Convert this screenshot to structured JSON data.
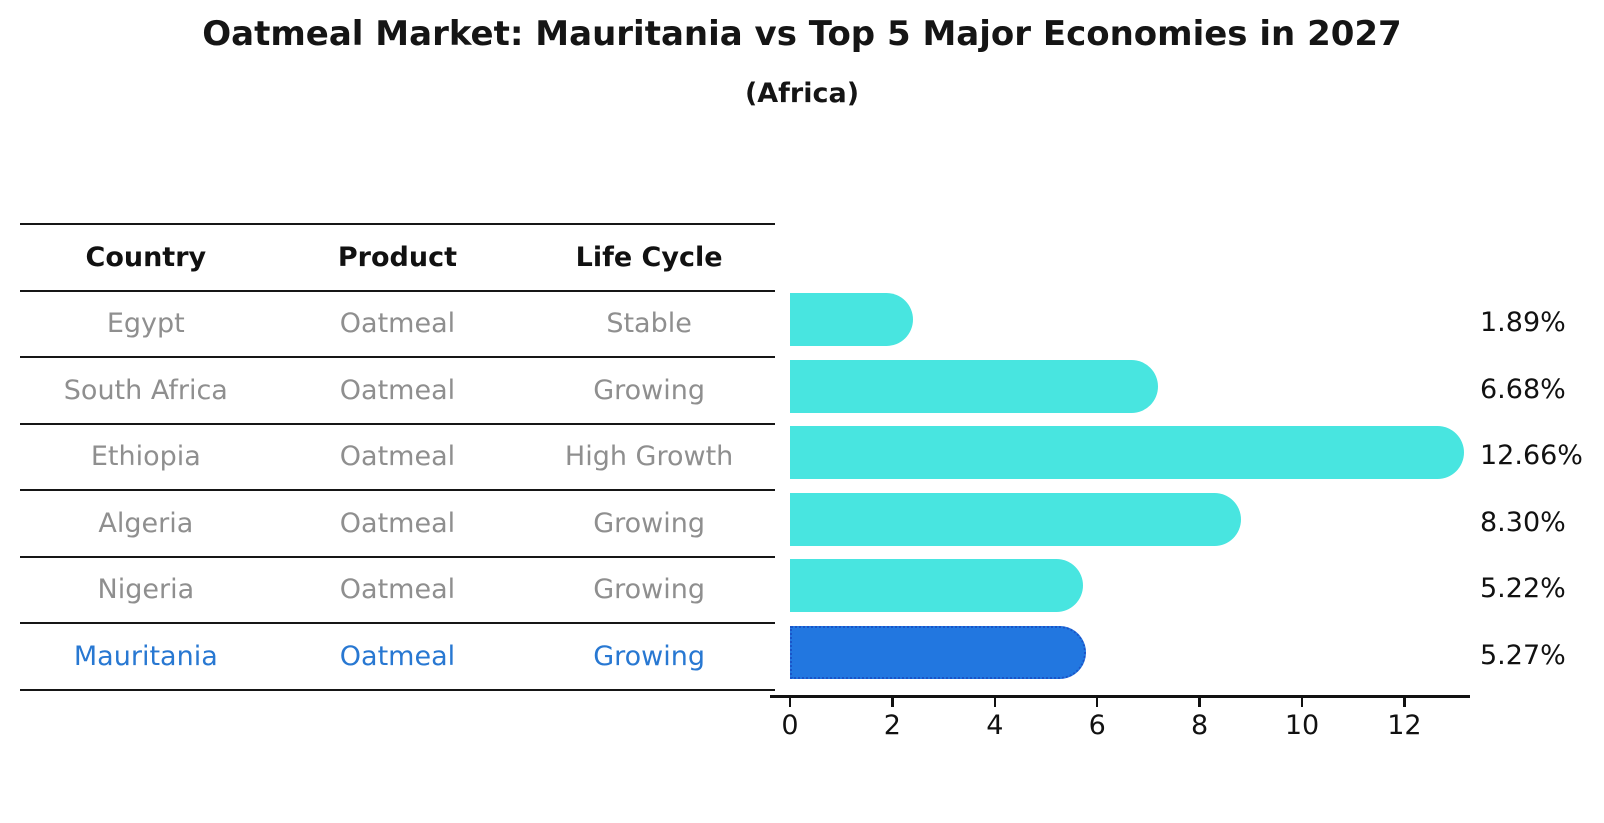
{
  "title": "Oatmeal Market: Mauritania vs Top 5 Major Economies in 2027",
  "subtitle": "(Africa)",
  "table": {
    "headers": [
      "Country",
      "Product",
      "Life Cycle"
    ],
    "rows": [
      {
        "country": "Egypt",
        "product": "Oatmeal",
        "life_cycle": "Stable",
        "highlighted": false
      },
      {
        "country": "South Africa",
        "product": "Oatmeal",
        "life_cycle": "Growing",
        "highlighted": false
      },
      {
        "country": "Ethiopia",
        "product": "Oatmeal",
        "life_cycle": "High Growth",
        "highlighted": false
      },
      {
        "country": "Algeria",
        "product": "Oatmeal",
        "life_cycle": "Growing",
        "highlighted": false
      },
      {
        "country": "Nigeria",
        "product": "Oatmeal",
        "life_cycle": "Growing",
        "highlighted": false
      },
      {
        "country": "Mauritania",
        "product": "Oatmeal",
        "life_cycle": "Growing",
        "highlighted": true
      }
    ]
  },
  "chart_data": {
    "type": "bar",
    "orientation": "horizontal",
    "title": "Oatmeal Market: Mauritania vs Top 5 Major Economies in 2027",
    "subtitle": "(Africa)",
    "categories": [
      "Egypt",
      "South Africa",
      "Ethiopia",
      "Algeria",
      "Nigeria",
      "Mauritania"
    ],
    "values": [
      1.89,
      6.68,
      12.66,
      8.3,
      5.22,
      5.27
    ],
    "value_labels": [
      "1.89%",
      "6.68%",
      "12.66%",
      "8.30%",
      "5.22%",
      "5.27%"
    ],
    "unit": "percent",
    "x_ticks": [
      0,
      2,
      4,
      6,
      8,
      10,
      12
    ],
    "x_tick_labels": [
      "0",
      "2",
      "4",
      "6",
      "8",
      "10",
      "12"
    ],
    "xlim": [
      0,
      13.3
    ],
    "grid": false,
    "legend": "none",
    "highlight_index": 5,
    "colors": {
      "bar_default": "#48e5e0",
      "bar_highlight": "#2277e0",
      "bar_highlight_border": "#1a54c8",
      "row_text_gray": "#8f8f8f",
      "highlight_text_blue": "#2878d2",
      "text_black": "#111111"
    }
  }
}
